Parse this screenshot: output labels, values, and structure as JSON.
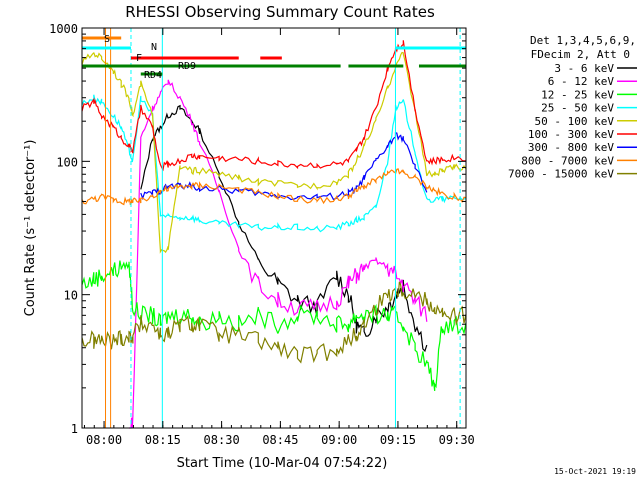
{
  "chart_data": {
    "type": "line",
    "title": "RHESSI Observing Summary Count Rates",
    "xlabel": "Start Time (10-Mar-04 07:54:22)",
    "ylabel": "Count Rate (s⁻¹ detector⁻¹)",
    "y_scale": "log",
    "ylim": [
      1,
      1000
    ],
    "xlim_minutes": [
      0,
      98
    ],
    "x_tick_labels": [
      "08:00",
      "08:15",
      "08:30",
      "08:45",
      "09:00",
      "09:15",
      "09:30"
    ],
    "x_tick_minutes": [
      5.63,
      20.63,
      35.63,
      50.63,
      65.63,
      80.63,
      95.63
    ],
    "y_tick_labels": [
      "1",
      "10",
      "100",
      "1000"
    ],
    "y_tick_values": [
      1,
      10,
      100,
      1000
    ],
    "legend_header": [
      "Det 1,3,4,5,6,9,",
      "FDecim 2, Att 0"
    ],
    "legend_position": "right",
    "timestamp": "15-Oct-2021 19:19",
    "x_minutes": [
      0,
      3,
      5,
      8,
      10,
      12,
      13,
      15,
      18,
      20,
      22,
      25,
      28,
      30,
      35,
      40,
      45,
      50,
      55,
      60,
      65,
      68,
      70,
      72,
      75,
      78,
      80,
      82,
      85,
      88,
      90,
      92,
      95,
      98
    ],
    "series": [
      {
        "name": "3 - 6 keV",
        "color": "#000000",
        "values": [
          null,
          null,
          null,
          null,
          null,
          null,
          null,
          60,
          150,
          180,
          220,
          250,
          200,
          170,
          80,
          35,
          18,
          12,
          9,
          8,
          14,
          10,
          6,
          5,
          7,
          8,
          10,
          12,
          6,
          4,
          null,
          null,
          null,
          null
        ]
      },
      {
        "name": "6 - 12 keV",
        "color": "#ff00ff",
        "values": [
          null,
          null,
          null,
          null,
          null,
          0.8,
          1.2,
          150,
          250,
          320,
          400,
          300,
          200,
          140,
          60,
          22,
          12,
          9,
          8,
          8,
          9,
          12,
          14,
          16,
          18,
          16,
          14,
          12,
          9,
          7,
          null,
          null,
          null,
          null
        ]
      },
      {
        "name": "12 - 25 keV",
        "color": "#00ff00",
        "values": [
          12,
          13,
          14,
          15,
          16,
          17,
          8,
          7,
          7,
          6,
          7,
          7,
          7,
          6,
          7,
          6,
          7,
          6,
          7,
          7,
          6,
          6,
          7,
          7,
          7,
          7,
          7,
          6,
          4,
          3,
          2,
          6,
          6,
          6
        ]
      },
      {
        "name": "25 - 50 keV",
        "color": "#00ffff",
        "values": [
          270,
          300,
          280,
          220,
          180,
          120,
          100,
          300,
          220,
          40,
          38,
          38,
          38,
          36,
          34,
          33,
          32,
          32,
          32,
          31,
          32,
          34,
          36,
          38,
          45,
          100,
          250,
          280,
          120,
          50,
          52,
          52,
          53,
          53
        ]
      },
      {
        "name": "50 - 100 keV",
        "color": "#cccc00",
        "values": [
          550,
          650,
          600,
          480,
          380,
          300,
          220,
          380,
          220,
          22,
          22,
          90,
          85,
          85,
          80,
          75,
          70,
          68,
          66,
          66,
          70,
          80,
          100,
          130,
          200,
          350,
          520,
          650,
          240,
          80,
          80,
          85,
          90,
          90
        ]
      },
      {
        "name": "100 - 300 keV",
        "color": "#ff0000",
        "values": [
          250,
          280,
          220,
          180,
          150,
          130,
          120,
          250,
          180,
          90,
          95,
          100,
          110,
          108,
          106,
          104,
          100,
          96,
          94,
          94,
          95,
          100,
          120,
          150,
          250,
          500,
          700,
          780,
          250,
          100,
          100,
          104,
          106,
          106
        ]
      },
      {
        "name": "300 - 800 keV",
        "color": "#0000ff",
        "values": [
          null,
          null,
          null,
          null,
          null,
          null,
          null,
          55,
          58,
          60,
          65,
          66,
          65,
          63,
          62,
          60,
          58,
          55,
          54,
          54,
          55,
          58,
          62,
          75,
          100,
          130,
          155,
          150,
          90,
          60,
          null,
          null,
          null,
          null
        ]
      },
      {
        "name": "800 - 7000 keV",
        "color": "#ff8000",
        "values": [
          50,
          52,
          54,
          52,
          50,
          50,
          50,
          50,
          55,
          60,
          62,
          64,
          66,
          66,
          65,
          62,
          58,
          55,
          52,
          51,
          52,
          55,
          60,
          65,
          72,
          80,
          84,
          82,
          75,
          65,
          60,
          57,
          54,
          52
        ]
      },
      {
        "name": "7000 - 15000 keV",
        "color": "#808000",
        "values": [
          4.5,
          4.5,
          4.5,
          4.5,
          4.8,
          4.8,
          5,
          6,
          6,
          5,
          5,
          6,
          6,
          6,
          5,
          5,
          4.5,
          4,
          3.5,
          3.5,
          4,
          4.5,
          5,
          6,
          8,
          10,
          11,
          11,
          10,
          9,
          8,
          7,
          7,
          7
        ]
      }
    ],
    "state_bars": [
      {
        "label": "S",
        "color": "#ff8000",
        "segments": [
          [
            0,
            10
          ]
        ]
      },
      {
        "label": "F",
        "color": "#ff0000",
        "segments": [
          [
            12.5,
            40
          ],
          [
            45.5,
            51
          ]
        ]
      },
      {
        "label": "N",
        "color": "#00ffff",
        "segments": [
          [
            0,
            12.5
          ],
          [
            80,
            98
          ]
        ]
      },
      {
        "label": "RD9",
        "color": "#008000",
        "segments": [
          [
            0,
            66
          ],
          [
            68,
            82
          ],
          [
            86,
            98
          ]
        ]
      },
      {
        "label": "RD4",
        "color": "#008000",
        "segments": [
          [
            15,
            20.5
          ]
        ]
      }
    ],
    "vertical_markers": [
      {
        "minute": 6,
        "color": "#ff8000",
        "style": "solid"
      },
      {
        "minute": 7.3,
        "color": "#ff8000",
        "style": "solid"
      },
      {
        "minute": 12.5,
        "color": "#00ffff",
        "style": "dashed"
      },
      {
        "minute": 20.5,
        "color": "#00ffff",
        "style": "solid"
      },
      {
        "minute": 80,
        "color": "#00ffff",
        "style": "solid"
      },
      {
        "minute": 96.5,
        "color": "#00ffff",
        "style": "dashed"
      }
    ]
  }
}
